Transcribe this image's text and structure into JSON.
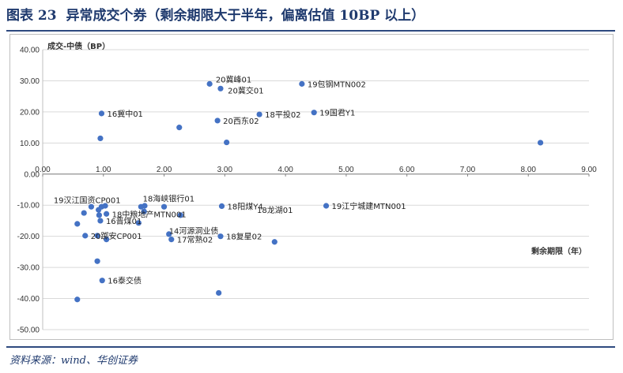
{
  "header": {
    "fig_label": "图表 23",
    "title": "异常成交个券（剩余期限大于半年，偏离估值 10BP 以上）"
  },
  "footer": {
    "source": "资料来源：wind、华创证券"
  },
  "colors": {
    "accent": "#1F3A6E",
    "point": "#4472C4",
    "grid": "#d9d9d9"
  },
  "chart_data": {
    "type": "scatter",
    "title": "异常成交个券（剩余期限大于半年，偏离估值 10BP 以上）",
    "xlabel": "剩余期限（年）",
    "ylabel": "成交-中债（BP）",
    "xlim": [
      0,
      9
    ],
    "ylim": [
      -50,
      40
    ],
    "grid": "horizontal",
    "x_ticks": [
      "0.00",
      "1.00",
      "2.00",
      "3.00",
      "4.00",
      "5.00",
      "6.00",
      "7.00",
      "8.00",
      "9.00"
    ],
    "y_ticks": [
      "40.00",
      "30.00",
      "20.00",
      "10.00",
      "0.00",
      "-10.00",
      "-20.00",
      "-30.00",
      "-40.00",
      "-50.00"
    ],
    "points": [
      {
        "x": 2.75,
        "y": 29.0,
        "label": ""
      },
      {
        "x": 2.93,
        "y": 27.5,
        "label": ""
      },
      {
        "x": 4.27,
        "y": 29.0,
        "label": "19包钢MTN002"
      },
      {
        "x": 0.97,
        "y": 19.5,
        "label": "16冀中01"
      },
      {
        "x": 3.57,
        "y": 19.2,
        "label": "18平投02"
      },
      {
        "x": 4.47,
        "y": 19.8,
        "label": "19国君Y1"
      },
      {
        "x": 2.25,
        "y": 15.0,
        "label": ""
      },
      {
        "x": 2.88,
        "y": 17.2,
        "label": "20西东02"
      },
      {
        "x": 0.95,
        "y": 11.5,
        "label": ""
      },
      {
        "x": 3.03,
        "y": 10.2,
        "label": ""
      },
      {
        "x": 8.2,
        "y": 10.1,
        "label": ""
      },
      {
        "x": 0.8,
        "y": -10.5,
        "label": ""
      },
      {
        "x": 0.97,
        "y": -10.5,
        "label": ""
      },
      {
        "x": 1.03,
        "y": -10.2,
        "label": ""
      },
      {
        "x": 0.92,
        "y": -11.5,
        "label": ""
      },
      {
        "x": 0.68,
        "y": -12.5,
        "label": ""
      },
      {
        "x": 0.93,
        "y": -13.2,
        "label": ""
      },
      {
        "x": 1.05,
        "y": -12.8,
        "label": "18中粮地产MTN001"
      },
      {
        "x": 1.62,
        "y": -10.5,
        "label": ""
      },
      {
        "x": 1.68,
        "y": -10.2,
        "label": ""
      },
      {
        "x": 1.67,
        "y": -12.0,
        "label": ""
      },
      {
        "x": 2.0,
        "y": -10.5,
        "label": ""
      },
      {
        "x": 2.95,
        "y": -10.3,
        "label": "18阳煤Y4"
      },
      {
        "x": 4.67,
        "y": -10.2,
        "label": "19江宁城建MTN001"
      },
      {
        "x": 0.57,
        "y": -16.0,
        "label": ""
      },
      {
        "x": 0.95,
        "y": -15.0,
        "label": "16晋煤01"
      },
      {
        "x": 1.58,
        "y": -15.7,
        "label": ""
      },
      {
        "x": 2.27,
        "y": -13.2,
        "label": ""
      },
      {
        "x": 0.7,
        "y": -19.8,
        "label": "20踯安CP001"
      },
      {
        "x": 0.9,
        "y": -19.8,
        "label": ""
      },
      {
        "x": 1.05,
        "y": -21.0,
        "label": ""
      },
      {
        "x": 2.08,
        "y": -19.3,
        "label": ""
      },
      {
        "x": 2.12,
        "y": -21.0,
        "label": "17常熟02"
      },
      {
        "x": 2.93,
        "y": -20.0,
        "label": "18复星02"
      },
      {
        "x": 3.82,
        "y": -21.8,
        "label": ""
      },
      {
        "x": 0.9,
        "y": -28.0,
        "label": ""
      },
      {
        "x": 0.98,
        "y": -34.2,
        "label": "16泰交债"
      },
      {
        "x": 2.9,
        "y": -38.2,
        "label": ""
      },
      {
        "x": 0.57,
        "y": -40.3,
        "label": ""
      }
    ],
    "annotations": [
      {
        "text": "20冀峰01",
        "x": 2.85,
        "y": 30.5
      },
      {
        "text": "20冀交01",
        "x": 3.05,
        "y": 27.0
      },
      {
        "text": "18龙湖01",
        "x": 3.53,
        "y": -11.5
      },
      {
        "text": "19汉江国资CP001",
        "x": 0.18,
        "y": -8.3
      },
      {
        "text": "18海峡银行01",
        "x": 1.65,
        "y": -7.8
      },
      {
        "text": "14河源洞业债",
        "x": 2.08,
        "y": -18.2
      }
    ]
  }
}
